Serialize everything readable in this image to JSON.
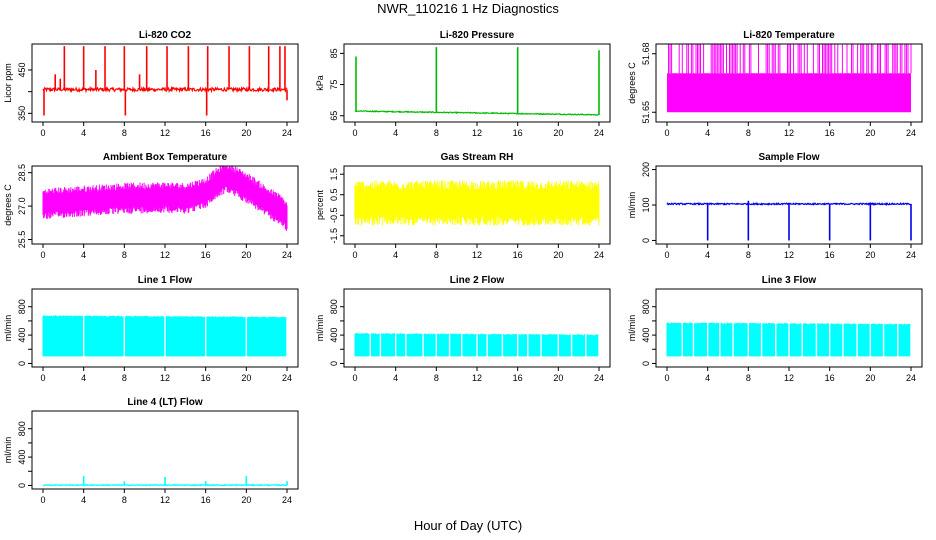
{
  "title": "NWR_110216  1 Hz Diagnostics",
  "xlabel": "Hour of Day (UTC)",
  "chart_data": [
    {
      "type": "line",
      "title": "Li-820 CO2",
      "ylabel": "Licor ppm",
      "color": "#ff0000",
      "xlim": [
        0,
        24
      ],
      "xticks": [
        0,
        4,
        8,
        12,
        16,
        20,
        24
      ],
      "ylim": [
        330,
        510
      ],
      "yticks": [
        350,
        400,
        450
      ],
      "ytick_labels": [
        "350",
        "",
        "450"
      ],
      "pattern": {
        "style": "spikes",
        "base": 405,
        "noise": 4,
        "up": [
          [
            1.2,
            440
          ],
          [
            1.7,
            430
          ],
          [
            2.1,
            505
          ],
          [
            4,
            505
          ],
          [
            5.2,
            450
          ],
          [
            6.1,
            505
          ],
          [
            8,
            505
          ],
          [
            9.5,
            440
          ],
          [
            10.2,
            505
          ],
          [
            12.2,
            505
          ],
          [
            14.3,
            505
          ],
          [
            16.2,
            505
          ],
          [
            18.3,
            505
          ],
          [
            20.3,
            505
          ],
          [
            22.2,
            505
          ],
          [
            23.3,
            505
          ],
          [
            23.8,
            505
          ]
        ],
        "down": [
          [
            0.1,
            345
          ],
          [
            8.1,
            345
          ],
          [
            16.1,
            345
          ],
          [
            24,
            380
          ]
        ]
      }
    },
    {
      "type": "line",
      "title": "Li-820 Pressure",
      "ylabel": "kPa",
      "color": "#00bb00",
      "xlim": [
        0,
        24
      ],
      "xticks": [
        0,
        4,
        8,
        12,
        16,
        20,
        24
      ],
      "ylim": [
        63,
        88
      ],
      "yticks": [
        65,
        75,
        85
      ],
      "ytick_labels": [
        "65",
        "75",
        "85"
      ],
      "pattern": {
        "style": "spikes",
        "base": 66.5,
        "noise": 0.15,
        "drift": -1.2,
        "up": [
          [
            0.1,
            84
          ],
          [
            8,
            87
          ],
          [
            16,
            87
          ],
          [
            24,
            86
          ]
        ],
        "down": []
      }
    },
    {
      "type": "area",
      "title": "Li-820 Temperature",
      "ylabel": "degrees C",
      "color": "#ff00ff",
      "xlim": [
        0,
        24
      ],
      "xticks": [
        0,
        4,
        8,
        12,
        16,
        20,
        24
      ],
      "ylim": [
        51.645,
        51.685
      ],
      "yticks": [
        51.65,
        51.68
      ],
      "ytick_labels": [
        "51.65",
        "51.68"
      ],
      "pattern": {
        "style": "block",
        "low": 51.65,
        "high": 51.67,
        "top": 51.685,
        "spike_density": 0.6
      }
    },
    {
      "type": "area",
      "title": "Ambient Box Temperature",
      "ylabel": "degrees C",
      "color": "#ff00ff",
      "xlim": [
        0,
        24
      ],
      "xticks": [
        0,
        4,
        8,
        12,
        16,
        20,
        24
      ],
      "ylim": [
        25.3,
        28.8
      ],
      "yticks": [
        25.5,
        27,
        28.5
      ],
      "ytick_labels": [
        "25.5",
        "27.0",
        "28.5"
      ],
      "pattern": {
        "style": "band",
        "knots": [
          [
            0,
            27.1
          ],
          [
            3,
            27.2
          ],
          [
            8,
            27.35
          ],
          [
            12,
            27.4
          ],
          [
            14,
            27.35
          ],
          [
            16,
            27.6
          ],
          [
            17,
            28.0
          ],
          [
            18,
            28.3
          ],
          [
            19,
            28.1
          ],
          [
            20.5,
            27.7
          ],
          [
            22,
            27.2
          ],
          [
            23.5,
            26.8
          ],
          [
            24,
            26.5
          ]
        ],
        "width": 0.7
      }
    },
    {
      "type": "area",
      "title": "Gas Stream RH",
      "ylabel": "percent",
      "color": "#ffff00",
      "xlim": [
        0,
        24
      ],
      "xticks": [
        0,
        4,
        8,
        12,
        16,
        20,
        24
      ],
      "ylim": [
        -1.9,
        1.9
      ],
      "yticks": [
        -1.5,
        -0.5,
        0.5,
        1.5
      ],
      "ytick_labels": [
        "-1.5",
        "-0.5",
        "0.5",
        "1.5"
      ],
      "pattern": {
        "style": "band",
        "knots": [
          [
            0,
            0.1
          ],
          [
            24,
            0.1
          ]
        ],
        "width": 1.1
      }
    },
    {
      "type": "line",
      "title": "Sample Flow",
      "ylabel": "ml/min",
      "color": "#0000ee",
      "xlim": [
        0,
        24
      ],
      "xticks": [
        0,
        4,
        8,
        12,
        16,
        20,
        24
      ],
      "ylim": [
        -10,
        210
      ],
      "yticks": [
        0,
        100,
        200
      ],
      "ytick_labels": [
        "0",
        "100",
        "200"
      ],
      "pattern": {
        "style": "spikes",
        "base": 103,
        "noise": 2,
        "up": [
          [
            8,
            112
          ]
        ],
        "down": [
          [
            4,
            0
          ],
          [
            8,
            0
          ],
          [
            12,
            0
          ],
          [
            16,
            0
          ],
          [
            20,
            0
          ],
          [
            24,
            0
          ]
        ]
      }
    },
    {
      "type": "area",
      "title": "Line 1 Flow",
      "ylabel": "ml/min",
      "color": "#00ffff",
      "xlim": [
        0,
        24
      ],
      "xticks": [
        0,
        4,
        8,
        12,
        16,
        20,
        24
      ],
      "ylim": [
        -50,
        1050
      ],
      "yticks": [
        0,
        200,
        400,
        600,
        800
      ],
      "ytick_labels": [
        "0",
        "",
        "400",
        "",
        "800"
      ],
      "pattern": {
        "style": "block_drop",
        "low": 100,
        "high_start": 680,
        "high_end": 660,
        "drops": [
          4,
          8,
          12,
          16,
          20,
          24
        ]
      }
    },
    {
      "type": "area",
      "title": "Line 2 Flow",
      "ylabel": "ml/min",
      "color": "#00ffff",
      "xlim": [
        0,
        24
      ],
      "xticks": [
        0,
        4,
        8,
        12,
        16,
        20,
        24
      ],
      "ylim": [
        -50,
        1050
      ],
      "yticks": [
        0,
        200,
        400,
        600,
        800
      ],
      "ytick_labels": [
        "0",
        "",
        "400",
        "",
        "800"
      ],
      "pattern": {
        "style": "block_drop",
        "low": 100,
        "high_start": 430,
        "high_end": 410,
        "drops": [
          1.5,
          2.5,
          4,
          5,
          6.7,
          8,
          9.3,
          10.5,
          12,
          13,
          14.5,
          16,
          17,
          18.3,
          20,
          21.3,
          22.7,
          24
        ]
      }
    },
    {
      "type": "area",
      "title": "Line 3 Flow",
      "ylabel": "ml/min",
      "color": "#00ffff",
      "xlim": [
        0,
        24
      ],
      "xticks": [
        0,
        4,
        8,
        12,
        16,
        20,
        24
      ],
      "ylim": [
        -50,
        1050
      ],
      "yticks": [
        0,
        200,
        400,
        600,
        800
      ],
      "ytick_labels": [
        "0",
        "",
        "400",
        "",
        "800"
      ],
      "pattern": {
        "style": "block_drop",
        "low": 100,
        "high_start": 580,
        "high_end": 560,
        "drops": [
          1.5,
          2.6,
          4,
          5.2,
          6.5,
          8,
          9.3,
          10.7,
          12,
          13.3,
          14.7,
          16,
          17.3,
          18.7,
          20,
          21.3,
          22.7,
          24
        ]
      }
    },
    {
      "type": "line",
      "title": "Line 4 (LT) Flow",
      "ylabel": "ml/min",
      "color": "#00ffff",
      "xlim": [
        0,
        24
      ],
      "xticks": [
        0,
        4,
        8,
        12,
        16,
        20,
        24
      ],
      "ylim": [
        -50,
        1050
      ],
      "yticks": [
        0,
        200,
        400,
        600,
        800
      ],
      "ytick_labels": [
        "0",
        "",
        "400",
        "",
        "800"
      ],
      "pattern": {
        "style": "spikes",
        "base": 5,
        "noise": 6,
        "up": [
          [
            4,
            130
          ],
          [
            8,
            60
          ],
          [
            12,
            120
          ],
          [
            16,
            60
          ],
          [
            20,
            130
          ],
          [
            24,
            60
          ]
        ],
        "down": []
      }
    }
  ]
}
